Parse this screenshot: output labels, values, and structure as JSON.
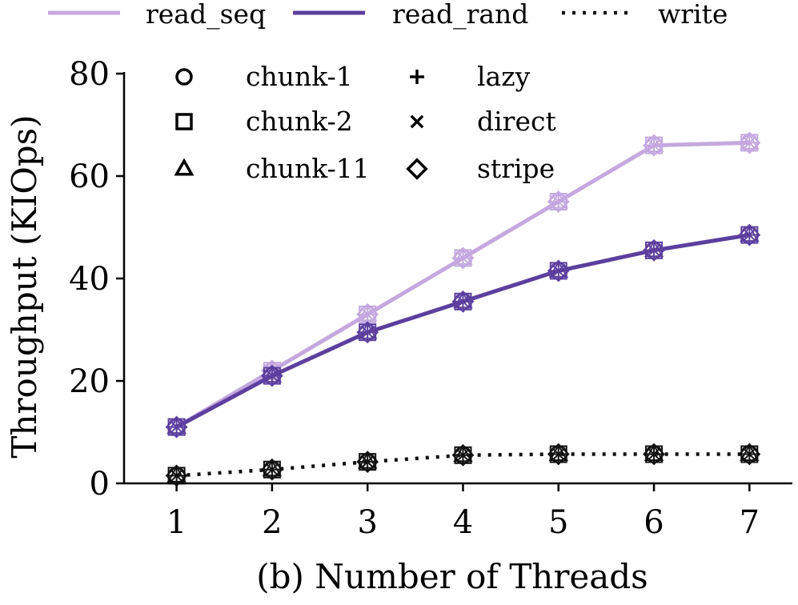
{
  "chart_data": {
    "type": "line",
    "title": "",
    "xlabel": "(b) Number of Threads",
    "ylabel": "Throughput (KIOps)",
    "x": [
      1,
      2,
      3,
      4,
      5,
      6,
      7
    ],
    "xlim": [
      0.45,
      7.45
    ],
    "ylim": [
      0,
      80
    ],
    "xticks": [
      "1",
      "2",
      "3",
      "4",
      "5",
      "6",
      "7"
    ],
    "yticks": [
      0,
      20,
      40,
      60,
      80
    ],
    "grid": false,
    "series": [
      {
        "name": "read_seq",
        "color": "#c4a8df",
        "line_style": "solid",
        "values": [
          11,
          22,
          33,
          44,
          55,
          66,
          66.5
        ]
      },
      {
        "name": "read_rand",
        "color": "#5c3f9e",
        "line_style": "solid",
        "values": [
          11,
          21,
          29.5,
          35.5,
          41.5,
          45.5,
          48.5
        ]
      },
      {
        "name": "write",
        "color": "#111111",
        "line_style": "dotted",
        "values": [
          1.5,
          2.7,
          4.2,
          5.5,
          5.7,
          5.7,
          5.7
        ]
      }
    ],
    "legend_lines": {
      "placement": "top",
      "labels": [
        "read_seq",
        "read_rand",
        "write"
      ]
    },
    "legend_markers": {
      "placement": "top-left",
      "items": [
        {
          "label": "chunk-1",
          "marker": "circle-icon"
        },
        {
          "label": "chunk-2",
          "marker": "square-icon"
        },
        {
          "label": "chunk-11",
          "marker": "triangle-icon"
        },
        {
          "label": "lazy",
          "marker": "plus-icon"
        },
        {
          "label": "direct",
          "marker": "x-icon"
        },
        {
          "label": "stripe",
          "marker": "diamond-icon"
        }
      ]
    }
  }
}
